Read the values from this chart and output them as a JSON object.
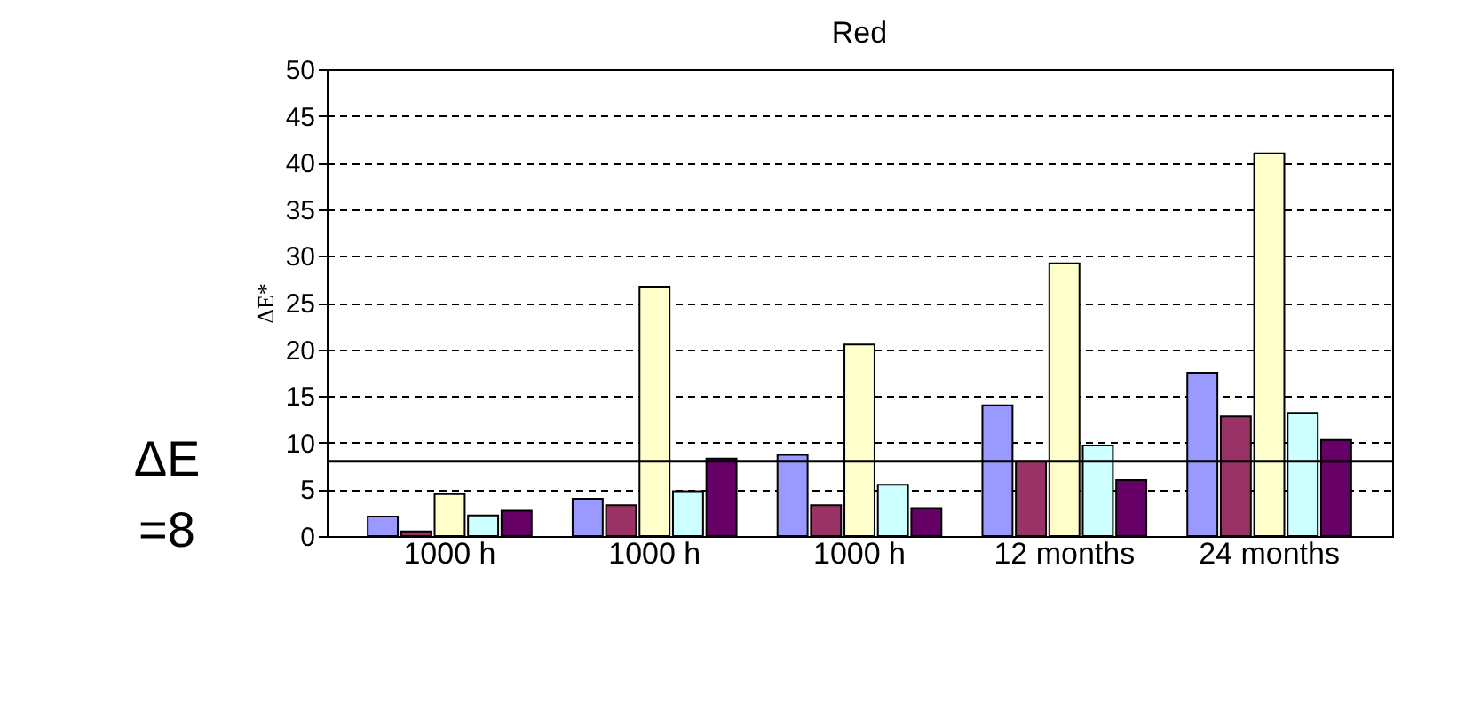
{
  "chart_data": {
    "type": "bar",
    "title": "Red",
    "ylabel": "ΔE*",
    "categories": [
      "1000 h",
      "1000 h",
      "1000 h",
      "12 months",
      "24 months"
    ],
    "series": [
      {
        "color": "#9999ff",
        "values": [
          2.1,
          4,
          8.7,
          14,
          17.5
        ]
      },
      {
        "color": "#993366",
        "values": [
          0.5,
          3.3,
          3.3,
          8,
          12.8
        ]
      },
      {
        "color": "#ffffcc",
        "values": [
          4.5,
          26.7,
          20.5,
          29.2,
          41
        ]
      },
      {
        "color": "#ccffff",
        "values": [
          2.2,
          4.8,
          5.5,
          9.7,
          13.2
        ]
      },
      {
        "color": "#660066",
        "values": [
          2.7,
          8.3,
          3,
          6,
          10.3
        ]
      }
    ],
    "ylim": [
      0,
      50
    ],
    "yticks": [
      0,
      5,
      10,
      15,
      20,
      25,
      30,
      35,
      40,
      45,
      50
    ],
    "grid": "y",
    "ref_lines": [
      {
        "axis": "y",
        "value": 8,
        "label": "ΔE =8"
      }
    ]
  }
}
